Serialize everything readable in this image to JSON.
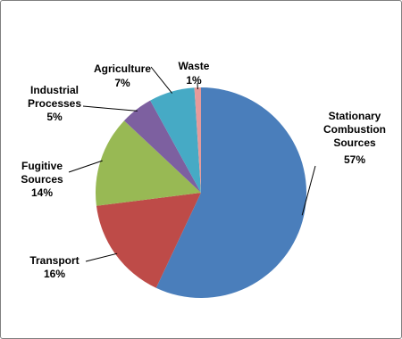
{
  "chart_data": {
    "type": "pie",
    "categories": [
      "Stationary Combustion Sources",
      "Transport",
      "Fugitive Sources",
      "Industrial Processes",
      "Agriculture",
      "Waste"
    ],
    "values": [
      57,
      16,
      14,
      5,
      7,
      1
    ],
    "value_labels": [
      "57%",
      "16%",
      "14%",
      "5%",
      "7%",
      "1%"
    ],
    "colors": [
      "#4a7ebb",
      "#be4b48",
      "#98b954",
      "#7d60a0",
      "#46aac5",
      "#e69a9a"
    ]
  }
}
